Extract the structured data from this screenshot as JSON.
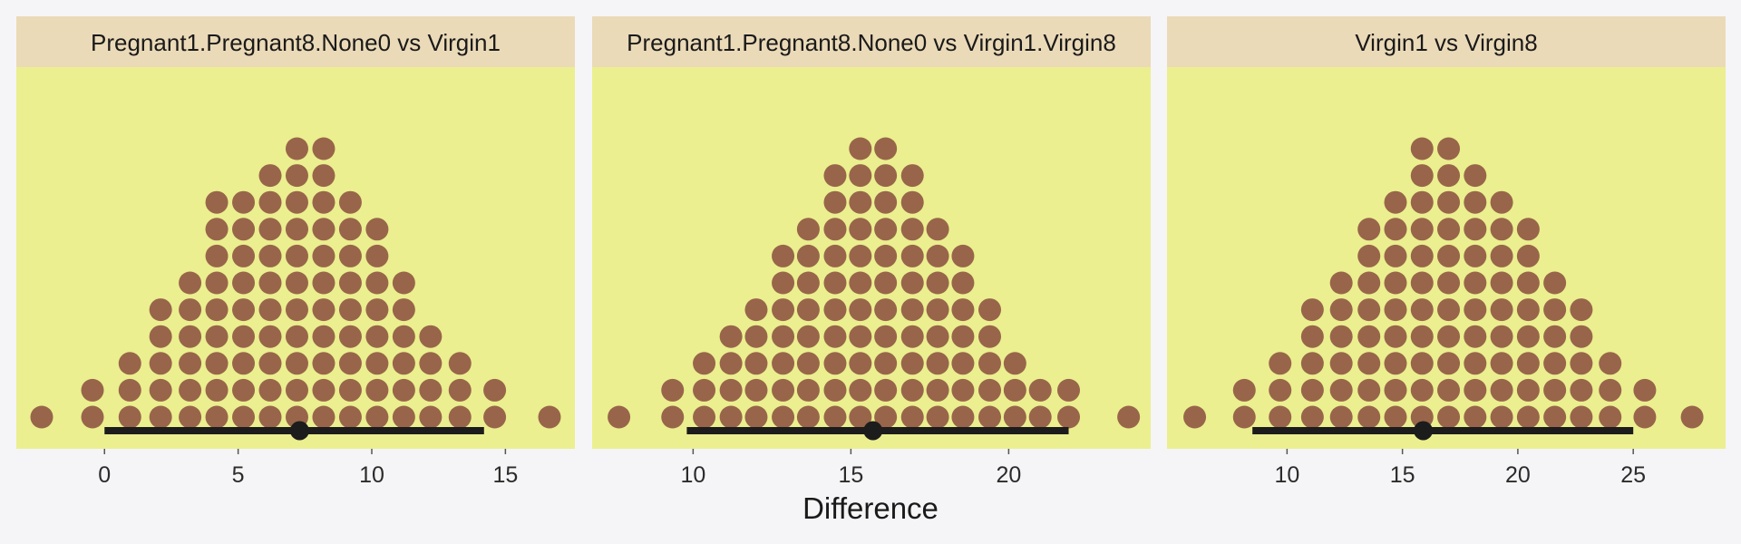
{
  "colors": {
    "page_background": "#f5f5f7",
    "strip_background": "#ebdab8",
    "panel_background": "#ebef8f",
    "dot": "#98654a",
    "interval": "#1c1c1c",
    "axis_text": "#2b2b2b"
  },
  "xlabel": "Difference",
  "chart_data": [
    {
      "type": "dotplot",
      "title": "Pregnant1.Pregnant8.None0 vs Virgin1",
      "xlim": [
        -3.3,
        17.6
      ],
      "xticks": [
        0,
        5,
        10,
        15
      ],
      "columns": [
        {
          "x": -2.35,
          "count": 1
        },
        {
          "x": -0.45,
          "count": 2
        },
        {
          "x": 0.95,
          "count": 3
        },
        {
          "x": 2.1,
          "count": 5
        },
        {
          "x": 3.2,
          "count": 6
        },
        {
          "x": 4.2,
          "count": 9
        },
        {
          "x": 5.2,
          "count": 9
        },
        {
          "x": 6.2,
          "count": 10
        },
        {
          "x": 7.2,
          "count": 11
        },
        {
          "x": 8.2,
          "count": 11
        },
        {
          "x": 9.2,
          "count": 9
        },
        {
          "x": 10.2,
          "count": 8
        },
        {
          "x": 11.2,
          "count": 6
        },
        {
          "x": 12.2,
          "count": 4
        },
        {
          "x": 13.3,
          "count": 3
        },
        {
          "x": 14.6,
          "count": 2
        },
        {
          "x": 16.65,
          "count": 1
        }
      ],
      "interval": {
        "low": 0.0,
        "high": 14.2,
        "point": 7.3
      }
    },
    {
      "type": "dotplot",
      "title": "Pregnant1.Pregnant8.None0 vs Virgin1.Virgin8",
      "xlim": [
        6.8,
        24.5
      ],
      "xticks": [
        10,
        15,
        20
      ],
      "columns": [
        {
          "x": 7.65,
          "count": 1
        },
        {
          "x": 9.35,
          "count": 2
        },
        {
          "x": 10.35,
          "count": 3
        },
        {
          "x": 11.2,
          "count": 4
        },
        {
          "x": 12.0,
          "count": 5
        },
        {
          "x": 12.85,
          "count": 7
        },
        {
          "x": 13.65,
          "count": 8
        },
        {
          "x": 14.5,
          "count": 10
        },
        {
          "x": 15.3,
          "count": 11
        },
        {
          "x": 16.1,
          "count": 11
        },
        {
          "x": 16.95,
          "count": 10
        },
        {
          "x": 17.75,
          "count": 8
        },
        {
          "x": 18.55,
          "count": 7
        },
        {
          "x": 19.4,
          "count": 5
        },
        {
          "x": 20.2,
          "count": 3
        },
        {
          "x": 21.0,
          "count": 2
        },
        {
          "x": 21.9,
          "count": 2
        },
        {
          "x": 23.8,
          "count": 1
        }
      ],
      "interval": {
        "low": 9.8,
        "high": 21.9,
        "point": 15.7
      }
    },
    {
      "type": "dotplot",
      "title": "Virgin1 vs Virgin8",
      "xlim": [
        4.8,
        29.0
      ],
      "xticks": [
        10,
        15,
        20,
        25
      ],
      "columns": [
        {
          "x": 6.0,
          "count": 1
        },
        {
          "x": 8.15,
          "count": 2
        },
        {
          "x": 9.7,
          "count": 3
        },
        {
          "x": 11.1,
          "count": 5
        },
        {
          "x": 12.35,
          "count": 6
        },
        {
          "x": 13.55,
          "count": 8
        },
        {
          "x": 14.7,
          "count": 9
        },
        {
          "x": 15.85,
          "count": 11
        },
        {
          "x": 17.0,
          "count": 11
        },
        {
          "x": 18.15,
          "count": 10
        },
        {
          "x": 19.3,
          "count": 9
        },
        {
          "x": 20.45,
          "count": 8
        },
        {
          "x": 21.6,
          "count": 6
        },
        {
          "x": 22.75,
          "count": 5
        },
        {
          "x": 24.0,
          "count": 3
        },
        {
          "x": 25.5,
          "count": 2
        },
        {
          "x": 27.55,
          "count": 1
        }
      ],
      "interval": {
        "low": 8.5,
        "high": 25.0,
        "point": 15.9
      }
    }
  ]
}
